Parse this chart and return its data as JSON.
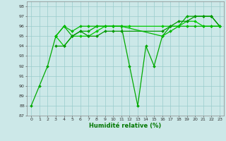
{
  "line1": {
    "x": [
      0,
      1,
      2,
      3,
      4,
      5,
      6,
      7,
      8,
      9,
      10,
      11,
      12,
      13,
      14,
      15,
      16,
      17,
      18,
      19,
      20,
      21,
      22,
      23
    ],
    "y": [
      88,
      90,
      92,
      95,
      96,
      95,
      95.5,
      95.5,
      96,
      96,
      96,
      96,
      92,
      88,
      94,
      92,
      95,
      96,
      96,
      97,
      97,
      97,
      97,
      96
    ],
    "color": "#00aa00",
    "marker": "D",
    "markersize": 2.0,
    "linewidth": 0.9
  },
  "line2": {
    "x": [
      3,
      4,
      5,
      6,
      7,
      8,
      9,
      10,
      11,
      12,
      16,
      17,
      18,
      19,
      20,
      21,
      22,
      23
    ],
    "y": [
      95,
      94,
      95,
      95,
      95,
      95.5,
      96,
      96,
      96,
      96,
      96,
      96,
      96,
      96.5,
      96.5,
      96,
      96,
      96
    ],
    "color": "#00cc00",
    "marker": "D",
    "markersize": 2.0,
    "linewidth": 0.9
  },
  "line3": {
    "x": [
      3,
      4,
      5,
      6,
      7,
      8,
      9,
      10,
      11,
      16,
      17,
      18,
      19,
      20,
      21,
      22,
      23
    ],
    "y": [
      94,
      94,
      95,
      95.5,
      95,
      95,
      95.5,
      95.5,
      95.5,
      95.5,
      96,
      96.5,
      96.5,
      97,
      97,
      97,
      96
    ],
    "color": "#009900",
    "marker": "D",
    "markersize": 2.0,
    "linewidth": 0.9
  },
  "line4": {
    "x": [
      3,
      4,
      5,
      6,
      7,
      8,
      9,
      10,
      11,
      16,
      17,
      18,
      19,
      20,
      21,
      22,
      23
    ],
    "y": [
      95,
      96,
      95.5,
      96,
      96,
      96,
      96,
      96,
      96,
      95,
      95.5,
      96,
      96,
      96,
      96,
      96,
      96
    ],
    "color": "#00bb00",
    "marker": "D",
    "markersize": 2.0,
    "linewidth": 0.9
  },
  "xlabel": "Humidité relative (%)",
  "ylim": [
    87,
    98.5
  ],
  "xlim": [
    -0.5,
    23.5
  ],
  "yticks": [
    87,
    88,
    89,
    90,
    91,
    92,
    93,
    94,
    95,
    96,
    97,
    98
  ],
  "xticks": [
    0,
    1,
    2,
    3,
    4,
    5,
    6,
    7,
    8,
    9,
    10,
    11,
    12,
    13,
    14,
    15,
    16,
    17,
    18,
    19,
    20,
    21,
    22,
    23
  ],
  "bg_color": "#cce8e8",
  "grid_color": "#99cccc",
  "label_color": "#007700",
  "tick_color": "#333333"
}
